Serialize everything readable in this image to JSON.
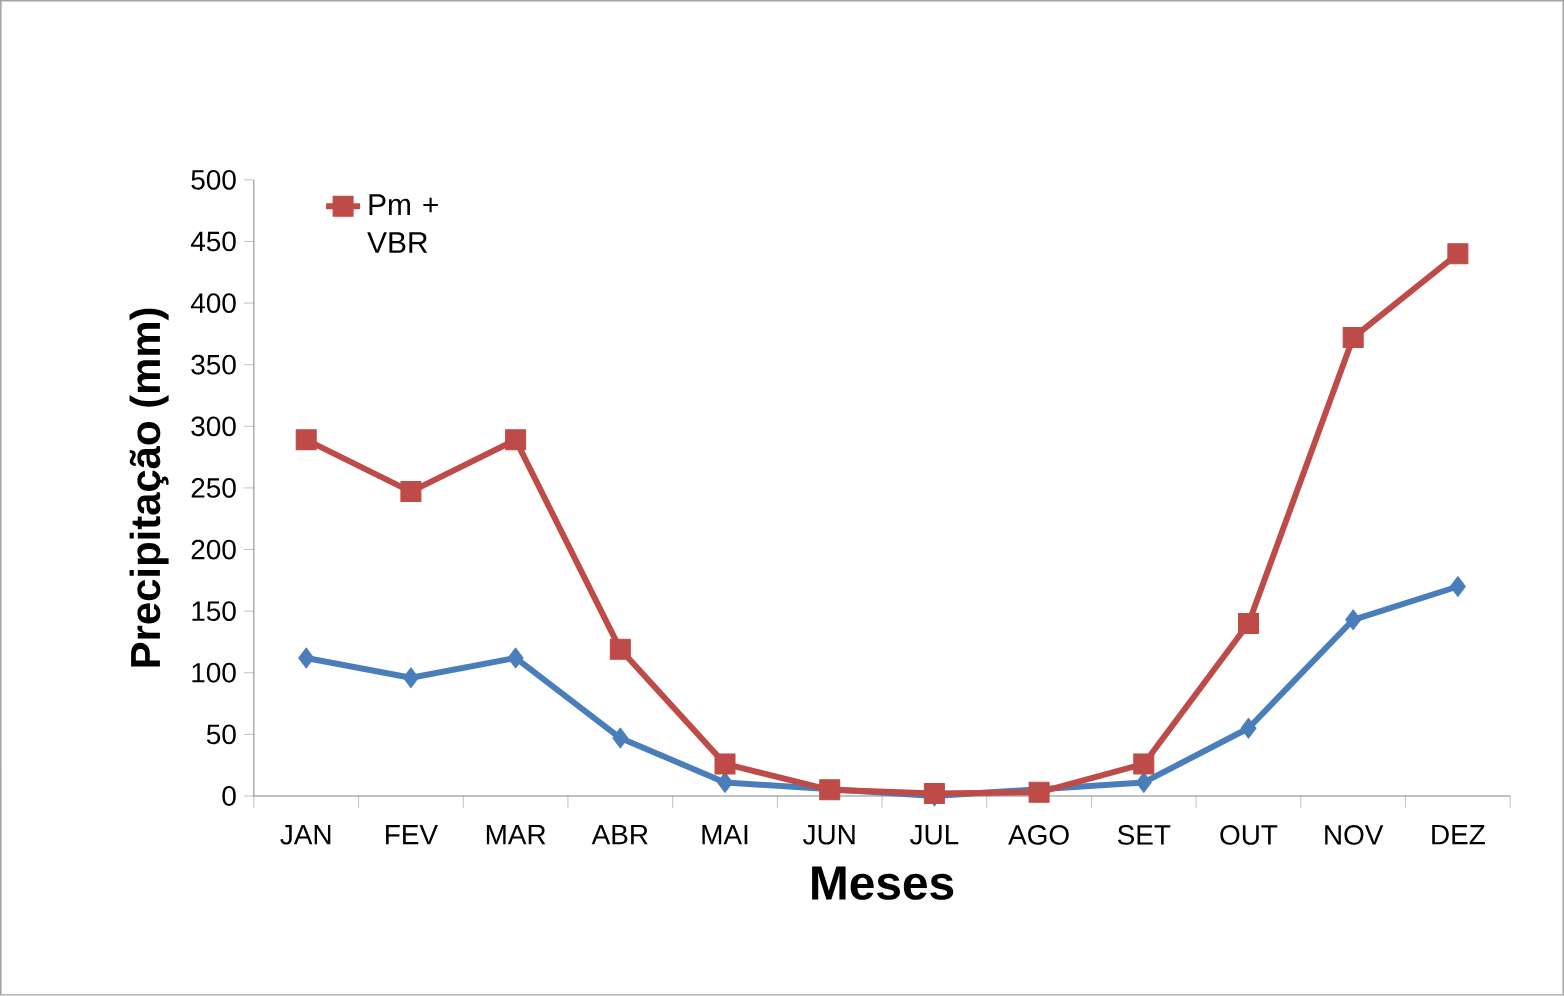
{
  "chart_data": {
    "type": "line",
    "xlabel": "Meses",
    "ylabel": "Precipitação (mm)",
    "categories": [
      "JAN",
      "FEV",
      "MAR",
      "ABR",
      "MAI",
      "JUN",
      "JUL",
      "AGO",
      "SET",
      "OUT",
      "NOV",
      "DEZ"
    ],
    "series": [
      {
        "color": "#4a7ebb",
        "marker": "diamond",
        "values": [
          112,
          96,
          112,
          47,
          11,
          null,
          0,
          null,
          11,
          55,
          143,
          170
        ]
      },
      {
        "name": "Pm + VBR",
        "color": "#be4b48",
        "marker": "square",
        "values": [
          289,
          247,
          289,
          119,
          26,
          5,
          2,
          3,
          26,
          140,
          372,
          440
        ]
      }
    ],
    "ylim": [
      0,
      500
    ],
    "yticks": [
      0,
      50,
      100,
      150,
      200,
      250,
      300,
      350,
      400,
      450,
      500
    ],
    "grid": false,
    "legend": "top left",
    "line_style": "solid"
  }
}
